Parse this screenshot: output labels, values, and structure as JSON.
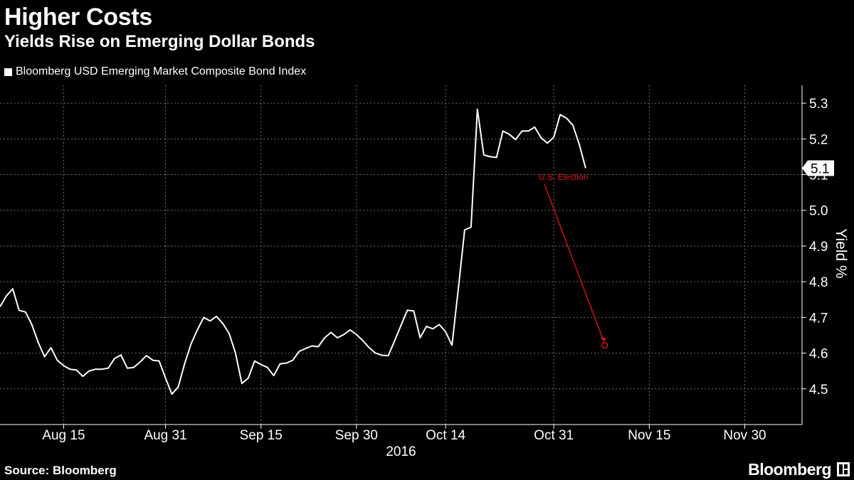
{
  "header": {
    "title": "Higher Costs",
    "subtitle": "Yields Rise on Emerging Dollar Bonds"
  },
  "footer": {
    "source": "Source: Bloomberg",
    "brand": "Bloomberg"
  },
  "colors": {
    "background": "#000000",
    "line": "#ffffff",
    "grid": "#6e6e6e",
    "annotation": "#e2161b"
  },
  "chart_data": {
    "type": "line",
    "title": "Higher Costs",
    "subtitle": "Yields Rise on Emerging Dollar Bonds",
    "legend": [
      "Bloomberg USD Emerging Market Composite Bond Index"
    ],
    "legend_position": "top-left",
    "xlabel": "",
    "ylabel": "Yield %",
    "year_label": "2016",
    "ylim": [
      4.4,
      5.35
    ],
    "xlim": [
      "2016-08-05",
      "2016-12-09"
    ],
    "yticks": [
      "4.5",
      "4.6",
      "4.7",
      "4.8",
      "4.9",
      "5.0",
      "5.1",
      "5.2",
      "5.3"
    ],
    "yticks_values": [
      4.5,
      4.6,
      4.7,
      4.8,
      4.9,
      5.0,
      5.1,
      5.2,
      5.3
    ],
    "xticks": [
      {
        "date": "2016-08-15",
        "label": "Aug 15"
      },
      {
        "date": "2016-08-31",
        "label": "Aug 31"
      },
      {
        "date": "2016-09-15",
        "label": "Sep 15"
      },
      {
        "date": "2016-09-30",
        "label": "Sep 30"
      },
      {
        "date": "2016-10-14",
        "label": "Oct 14"
      },
      {
        "date": "2016-10-31",
        "label": "Oct 31"
      },
      {
        "date": "2016-11-15",
        "label": "Nov 15"
      },
      {
        "date": "2016-11-30",
        "label": "Nov 30"
      }
    ],
    "grid": true,
    "last_value_label": "5.1",
    "series": [
      {
        "name": "Bloomberg USD Emerging Market Composite Bond Index",
        "points": [
          [
            "2016-08-05",
            4.73
          ],
          [
            "2016-08-06",
            4.76
          ],
          [
            "2016-08-07",
            4.78
          ],
          [
            "2016-08-08",
            4.72
          ],
          [
            "2016-08-09",
            4.715
          ],
          [
            "2016-08-10",
            4.68
          ],
          [
            "2016-08-11",
            4.63
          ],
          [
            "2016-08-12",
            4.59
          ],
          [
            "2016-08-13",
            4.615
          ],
          [
            "2016-08-14",
            4.58
          ],
          [
            "2016-08-15",
            4.565
          ],
          [
            "2016-08-16",
            4.555
          ],
          [
            "2016-08-17",
            4.553
          ],
          [
            "2016-08-18",
            4.535
          ],
          [
            "2016-08-19",
            4.55
          ],
          [
            "2016-08-20",
            4.555
          ],
          [
            "2016-08-21",
            4.555
          ],
          [
            "2016-08-22",
            4.558
          ],
          [
            "2016-08-23",
            4.585
          ],
          [
            "2016-08-24",
            4.595
          ],
          [
            "2016-08-25",
            4.558
          ],
          [
            "2016-08-26",
            4.56
          ],
          [
            "2016-08-27",
            4.575
          ],
          [
            "2016-08-28",
            4.593
          ],
          [
            "2016-08-29",
            4.58
          ],
          [
            "2016-08-30",
            4.578
          ],
          [
            "2016-08-31",
            4.53
          ],
          [
            "2016-09-01",
            4.485
          ],
          [
            "2016-09-02",
            4.505
          ],
          [
            "2016-09-03",
            4.57
          ],
          [
            "2016-09-04",
            4.625
          ],
          [
            "2016-09-05",
            4.665
          ],
          [
            "2016-09-06",
            4.7
          ],
          [
            "2016-09-07",
            4.69
          ],
          [
            "2016-09-08",
            4.703
          ],
          [
            "2016-09-09",
            4.683
          ],
          [
            "2016-09-10",
            4.655
          ],
          [
            "2016-09-11",
            4.6
          ],
          [
            "2016-09-12",
            4.515
          ],
          [
            "2016-09-13",
            4.53
          ],
          [
            "2016-09-14",
            4.578
          ],
          [
            "2016-09-15",
            4.568
          ],
          [
            "2016-09-16",
            4.56
          ],
          [
            "2016-09-17",
            4.537
          ],
          [
            "2016-09-18",
            4.57
          ],
          [
            "2016-09-19",
            4.572
          ],
          [
            "2016-09-20",
            4.58
          ],
          [
            "2016-09-21",
            4.605
          ],
          [
            "2016-09-22",
            4.613
          ],
          [
            "2016-09-23",
            4.62
          ],
          [
            "2016-09-24",
            4.618
          ],
          [
            "2016-09-25",
            4.643
          ],
          [
            "2016-09-26",
            4.658
          ],
          [
            "2016-09-27",
            4.643
          ],
          [
            "2016-09-28",
            4.652
          ],
          [
            "2016-09-29",
            4.665
          ],
          [
            "2016-09-30",
            4.652
          ],
          [
            "2016-10-01",
            4.635
          ],
          [
            "2016-10-02",
            4.615
          ],
          [
            "2016-10-03",
            4.6
          ],
          [
            "2016-10-04",
            4.594
          ],
          [
            "2016-10-05",
            4.593
          ],
          [
            "2016-10-06",
            4.635
          ],
          [
            "2016-10-07",
            4.678
          ],
          [
            "2016-10-08",
            4.72
          ],
          [
            "2016-10-09",
            4.718
          ],
          [
            "2016-10-10",
            4.643
          ],
          [
            "2016-10-11",
            4.675
          ],
          [
            "2016-10-12",
            4.668
          ],
          [
            "2016-10-13",
            4.68
          ],
          [
            "2016-10-14",
            4.66
          ],
          [
            "2016-10-15",
            4.622
          ],
          [
            "2016-10-16",
            4.78
          ],
          [
            "2016-10-17",
            4.945
          ],
          [
            "2016-10-18",
            4.953
          ],
          [
            "2016-10-19",
            5.283
          ],
          [
            "2016-10-20",
            5.155
          ],
          [
            "2016-10-21",
            5.15
          ],
          [
            "2016-10-22",
            5.148
          ],
          [
            "2016-10-23",
            5.222
          ],
          [
            "2016-10-24",
            5.213
          ],
          [
            "2016-10-25",
            5.198
          ],
          [
            "2016-10-26",
            5.222
          ],
          [
            "2016-10-27",
            5.222
          ],
          [
            "2016-10-28",
            5.233
          ],
          [
            "2016-10-29",
            5.203
          ],
          [
            "2016-10-30",
            5.188
          ],
          [
            "2016-10-31",
            5.205
          ],
          [
            "2016-11-01",
            5.268
          ],
          [
            "2016-11-02",
            5.258
          ],
          [
            "2016-11-03",
            5.238
          ],
          [
            "2016-11-04",
            5.185
          ],
          [
            "2016-11-05",
            5.118
          ]
        ]
      }
    ],
    "annotations": [
      {
        "text": "U.S. Election",
        "target": [
          "2016-11-08",
          4.622
        ],
        "color": "#e2161b"
      }
    ]
  }
}
